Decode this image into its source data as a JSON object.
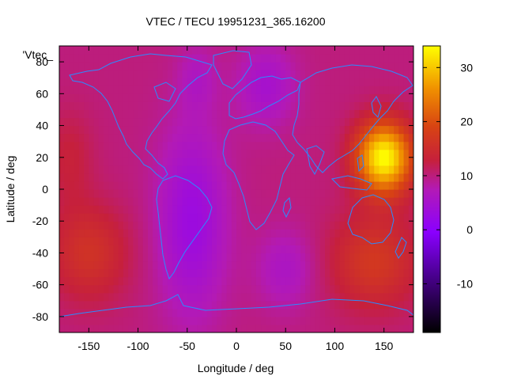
{
  "chart_data": {
    "type": "heatmap",
    "title": "VTEC / TECU 19951231_365.16200",
    "xlabel": "Longitude / deg",
    "ylabel": "Latitude / deg",
    "key_label": "'Vtec_",
    "xlim": [
      -180,
      180
    ],
    "ylim": [
      -90,
      90
    ],
    "x_ticks": [
      -150,
      -100,
      -50,
      0,
      50,
      100,
      150
    ],
    "y_ticks": [
      -80,
      -60,
      -40,
      -20,
      0,
      20,
      40,
      60,
      80
    ],
    "colorbar": {
      "range": [
        -19,
        34
      ],
      "ticks": [
        -10,
        0,
        10,
        20,
        30
      ],
      "palette": "gnuplot pm3d"
    },
    "grid": false,
    "overlay": "coastlines",
    "field_description_points": [
      {
        "lon": 150,
        "lat": 20,
        "vtec": 34
      },
      {
        "lon": -80,
        "lat": -20,
        "vtec": 4
      },
      {
        "lon": 0,
        "lat": 60,
        "vtec": 6
      },
      {
        "lon": -150,
        "lat": -40,
        "vtec": 18
      },
      {
        "lon": 150,
        "lat": -60,
        "vtec": 18
      }
    ]
  }
}
